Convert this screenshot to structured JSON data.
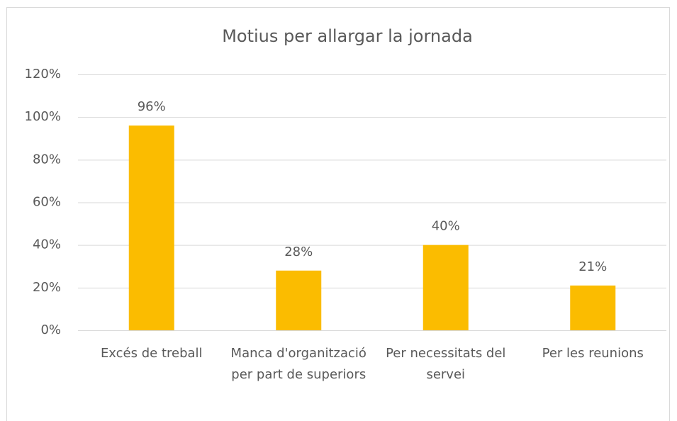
{
  "chart_data": {
    "type": "bar",
    "title": "Motius per allargar la jornada",
    "categories": [
      "Excés de treball",
      "Manca d'organització per part de superiors",
      "Per necessitats del servei",
      "Per les reunions"
    ],
    "values": [
      96,
      28,
      40,
      21
    ],
    "value_labels": [
      "96%",
      "28%",
      "40%",
      "21%"
    ],
    "color": "#fbbc00",
    "ylim": [
      0,
      120
    ],
    "yticks": [
      {
        "value": 0,
        "label": "0%"
      },
      {
        "value": 20,
        "label": "20%"
      },
      {
        "value": 40,
        "label": "40%"
      },
      {
        "value": 60,
        "label": "60%"
      },
      {
        "value": 80,
        "label": "80%"
      },
      {
        "value": 100,
        "label": "100%"
      },
      {
        "value": 120,
        "label": "120%"
      }
    ],
    "grid": true
  }
}
